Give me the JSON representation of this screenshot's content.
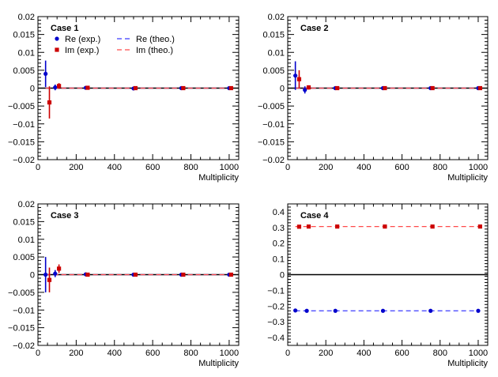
{
  "chart_data": [
    {
      "type": "scatter",
      "title": "Case 1",
      "xlabel": "Multiplicity",
      "ylabel": "",
      "xlim": [
        0,
        1050
      ],
      "ylim": [
        -0.02,
        0.02
      ],
      "xticks": [
        0,
        200,
        400,
        600,
        800,
        1000
      ],
      "xtick_labels": [
        "0",
        "200",
        "400",
        "600",
        "800",
        "1000"
      ],
      "yticks": [
        -0.02,
        -0.015,
        -0.01,
        -0.005,
        0,
        0.005,
        0.01,
        0.015,
        0.02
      ],
      "ytick_labels": [
        "−0.02",
        "−0.015",
        "−0.01",
        "−0.005",
        "0",
        "0.005",
        "0.01",
        "0.015",
        "0.02"
      ],
      "legend": {
        "placement": "top-left",
        "entries": [
          "Re (exp.)",
          "Im (exp.)",
          "Re (theo.)",
          "Im (theo.)"
        ]
      },
      "series": [
        {
          "name": "Re (exp.)",
          "kind": "points",
          "marker": "circle",
          "color": "#0000cc",
          "x": [
            40,
            90,
            250,
            500,
            750,
            1000
          ],
          "y": [
            0.004,
            0.0002,
            0.0001,
            -0.0001,
            0.0,
            0.0
          ],
          "err": [
            0.0037,
            0.0008,
            0.0003,
            0.0002,
            0.0002,
            0.0002
          ]
        },
        {
          "name": "Im (exp.)",
          "kind": "points",
          "marker": "square",
          "color": "#cc0000",
          "x": [
            60,
            110,
            260,
            510,
            760,
            1010
          ],
          "y": [
            -0.004,
            0.0006,
            0.0001,
            0.0,
            0.0,
            0.0
          ],
          "err": [
            0.0045,
            0.0008,
            0.0003,
            0.0002,
            0.0002,
            0.0002
          ]
        },
        {
          "name": "Re (theo.)",
          "kind": "line",
          "dashed": true,
          "color": "#3b3bff",
          "x": [
            40,
            1010
          ],
          "y": [
            0,
            0
          ]
        },
        {
          "name": "Im (theo.)",
          "kind": "line",
          "dashed": true,
          "color": "#ff4a4a",
          "x": [
            40,
            1010
          ],
          "y": [
            0,
            0
          ]
        }
      ]
    },
    {
      "type": "scatter",
      "title": "Case 2",
      "xlabel": "Multiplicity",
      "ylabel": "",
      "xlim": [
        0,
        1050
      ],
      "ylim": [
        -0.02,
        0.02
      ],
      "xticks": [
        0,
        200,
        400,
        600,
        800,
        1000
      ],
      "xtick_labels": [
        "0",
        "200",
        "400",
        "600",
        "800",
        "1000"
      ],
      "yticks": [
        -0.02,
        -0.015,
        -0.01,
        -0.005,
        0,
        0.005,
        0.01,
        0.015,
        0.02
      ],
      "ytick_labels": [
        "−0.02",
        "−0.015",
        "−0.01",
        "−0.005",
        "0",
        "0.005",
        "0.01",
        "0.015",
        "0.02"
      ],
      "series": [
        {
          "name": "Re (exp.)",
          "kind": "points",
          "marker": "circle",
          "color": "#0000cc",
          "x": [
            40,
            90,
            250,
            500,
            750,
            1000
          ],
          "y": [
            0.0035,
            -0.0005,
            0.0,
            0.0,
            0.0,
            0.0
          ],
          "err": [
            0.004,
            0.001,
            0.0003,
            0.0002,
            0.0002,
            0.0002
          ]
        },
        {
          "name": "Im (exp.)",
          "kind": "points",
          "marker": "square",
          "color": "#cc0000",
          "x": [
            60,
            110,
            260,
            510,
            760,
            1010
          ],
          "y": [
            0.0025,
            0.0002,
            0.0,
            0.0,
            0.0,
            0.0
          ],
          "err": [
            0.0025,
            0.0006,
            0.0003,
            0.0002,
            0.0002,
            0.0002
          ]
        },
        {
          "name": "Re (theo.)",
          "kind": "line",
          "dashed": true,
          "color": "#3b3bff",
          "x": [
            40,
            1010
          ],
          "y": [
            0,
            0
          ]
        },
        {
          "name": "Im (theo.)",
          "kind": "line",
          "dashed": true,
          "color": "#ff4a4a",
          "x": [
            40,
            1010
          ],
          "y": [
            0,
            0
          ]
        }
      ]
    },
    {
      "type": "scatter",
      "title": "Case 3",
      "xlabel": "Multiplicity",
      "ylabel": "",
      "xlim": [
        0,
        1050
      ],
      "ylim": [
        -0.02,
        0.02
      ],
      "xticks": [
        0,
        200,
        400,
        600,
        800,
        1000
      ],
      "xtick_labels": [
        "0",
        "200",
        "400",
        "600",
        "800",
        "1000"
      ],
      "yticks": [
        -0.02,
        -0.015,
        -0.01,
        -0.005,
        0,
        0.005,
        0.01,
        0.015,
        0.02
      ],
      "ytick_labels": [
        "−0.02",
        "−0.015",
        "−0.01",
        "−0.005",
        "0",
        "0.005",
        "0.01",
        "0.015",
        "0.02"
      ],
      "series": [
        {
          "name": "Re (exp.)",
          "kind": "points",
          "marker": "circle",
          "color": "#0000cc",
          "x": [
            40,
            90,
            250,
            500,
            750,
            1000
          ],
          "y": [
            0.0,
            0.0003,
            0.0001,
            0.0,
            0.0,
            0.0
          ],
          "err": [
            0.005,
            0.001,
            0.0003,
            0.0002,
            0.0002,
            0.0002
          ]
        },
        {
          "name": "Im (exp.)",
          "kind": "points",
          "marker": "square",
          "color": "#cc0000",
          "x": [
            60,
            110,
            260,
            510,
            760,
            1010
          ],
          "y": [
            -0.0015,
            0.0017,
            0.0,
            0.0,
            0.0,
            0.0
          ],
          "err": [
            0.0035,
            0.0012,
            0.0003,
            0.0002,
            0.0002,
            0.0002
          ]
        },
        {
          "name": "Re (theo.)",
          "kind": "line",
          "dashed": true,
          "color": "#3b3bff",
          "x": [
            40,
            1010
          ],
          "y": [
            0,
            0
          ]
        },
        {
          "name": "Im (theo.)",
          "kind": "line",
          "dashed": true,
          "color": "#ff4a4a",
          "x": [
            40,
            1010
          ],
          "y": [
            0,
            0
          ]
        }
      ]
    },
    {
      "type": "scatter",
      "title": "Case 4",
      "xlabel": "Multiplicity",
      "ylabel": "",
      "xlim": [
        0,
        1050
      ],
      "ylim": [
        -0.45,
        0.45
      ],
      "xticks": [
        0,
        200,
        400,
        600,
        800,
        1000
      ],
      "xtick_labels": [
        "0",
        "200",
        "400",
        "600",
        "800",
        "1000"
      ],
      "yticks": [
        -0.4,
        -0.3,
        -0.2,
        -0.1,
        0,
        0.1,
        0.2,
        0.3,
        0.4
      ],
      "ytick_labels": [
        "−0.4",
        "−0.3",
        "−0.2",
        "−0.1",
        "0",
        "0.1",
        "0.2",
        "0.3",
        "0.4"
      ],
      "series": [
        {
          "name": "Re (exp.)",
          "kind": "points",
          "marker": "circle",
          "color": "#0000cc",
          "x": [
            40,
            100,
            250,
            500,
            750,
            1000
          ],
          "y": [
            -0.228,
            -0.23,
            -0.23,
            -0.23,
            -0.23,
            -0.23
          ],
          "err": [
            0.004,
            0.003,
            0.002,
            0.002,
            0.002,
            0.002
          ]
        },
        {
          "name": "Im (exp.)",
          "kind": "points",
          "marker": "square",
          "color": "#cc0000",
          "x": [
            60,
            110,
            260,
            510,
            760,
            1010
          ],
          "y": [
            0.305,
            0.306,
            0.306,
            0.306,
            0.306,
            0.306
          ],
          "err": [
            0.004,
            0.003,
            0.002,
            0.002,
            0.002,
            0.002
          ]
        },
        {
          "name": "Re (theo.)",
          "kind": "line",
          "dashed": true,
          "color": "#3b3bff",
          "x": [
            40,
            1010
          ],
          "y": [
            -0.23,
            -0.23
          ]
        },
        {
          "name": "Im (theo.)",
          "kind": "line",
          "dashed": true,
          "color": "#ff4a4a",
          "x": [
            40,
            1010
          ],
          "y": [
            0.306,
            0.306
          ]
        }
      ]
    }
  ]
}
